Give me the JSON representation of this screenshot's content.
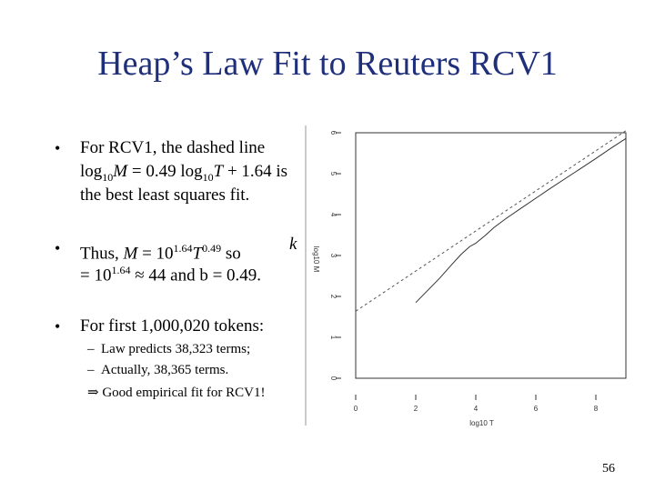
{
  "slide": {
    "title": "Heap’s Law Fit to Reuters RCV1",
    "page_number": "56",
    "bullet_glyph": "•",
    "bullet1": {
      "line1": "For RCV1, the dashed line",
      "line2_a": "log",
      "line2_sub1": "10",
      "line2_M": "M",
      "line2_b": " = 0.49 log",
      "line2_sub2": "10",
      "line2_T": "T",
      "line2_c": " + 1.64 is",
      "line3": "the best least squares fit."
    },
    "bullet2": {
      "a": "Thus, ",
      "M": "M",
      "b": " = 10",
      "sup1": "1.64",
      "T": "T",
      "sup2": "0.49",
      "c": " so",
      "k": "k",
      "line2_a": "= 10",
      "line2_sup": "1.64",
      "line2_b": " ≈ 44 and b = 0.49."
    },
    "bullet3": {
      "line1": "For first 1,000,020 tokens:",
      "sub1_dash": "–",
      "sub1": "Law predicts 38,323 terms;",
      "sub2_dash": "–",
      "sub2": "Actually, 38,365 terms.",
      "conclusion_arrow": "⇒",
      "conclusion": " Good empirical fit for RCV1!"
    }
  },
  "chart_data": {
    "type": "line",
    "xlabel": "log10 T",
    "ylabel": "log10 M",
    "xlim": [
      0,
      9
    ],
    "ylim": [
      0,
      6
    ],
    "xticks": [
      0,
      2,
      4,
      6,
      8
    ],
    "yticks": [
      0,
      1,
      2,
      3,
      4,
      5,
      6
    ],
    "grid": false,
    "series": [
      {
        "style": "dashed",
        "color": "#555555",
        "x": [
          0,
          9
        ],
        "y": [
          1.64,
          6.05
        ]
      },
      {
        "style": "solid",
        "color": "#333333",
        "x": [
          2.0,
          2.4,
          2.8,
          3.2,
          3.5,
          3.8,
          4.0,
          4.3,
          4.6,
          5.0,
          5.5,
          6.0,
          6.5,
          7.0,
          7.5,
          8.0,
          8.5,
          9.0
        ],
        "y": [
          1.85,
          2.15,
          2.45,
          2.78,
          3.02,
          3.22,
          3.3,
          3.48,
          3.68,
          3.9,
          4.15,
          4.4,
          4.65,
          4.89,
          5.13,
          5.37,
          5.62,
          5.86
        ]
      }
    ]
  }
}
